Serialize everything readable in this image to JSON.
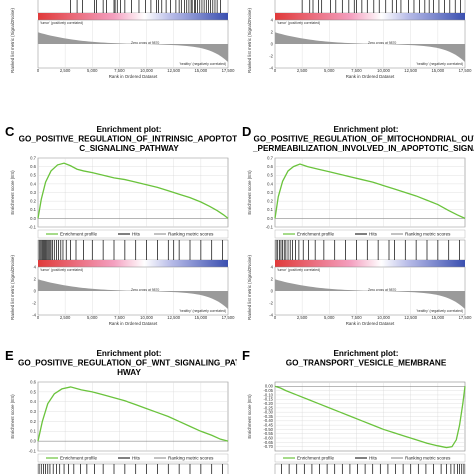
{
  "figure": {
    "panels": [
      {
        "id": "A",
        "letter": "",
        "title_lines": [],
        "partial": "bottom",
        "zero_cross": "Zero cross at 9870",
        "pos_label": "'tumor' (positively correlated)",
        "neg_label": "'healthy' (negatively correlated)"
      },
      {
        "id": "B",
        "letter": "",
        "title_lines": [],
        "partial": "bottom",
        "zero_cross": "Zero cross at 9870",
        "pos_label": "'tumor' (positively correlated)",
        "neg_label": "'healthy' (negatively correlated)"
      },
      {
        "id": "C",
        "letter": "C",
        "title_lines": [
          "Enrichment plot:",
          "GO_POSITIVE_REGULATION_OF_INTRINSIC_APOPTOTI",
          "C_SIGNALING_PATHWAY"
        ],
        "partial": "full",
        "zero_cross": "Zero cross at 9870",
        "pos_label": "'tumor' (positively correlated)",
        "neg_label": "'healthy' (negatively correlated)"
      },
      {
        "id": "D",
        "letter": "D",
        "title_lines": [
          "Enrichment plot:",
          "GO_POSITIVE_REGULATION_OF_MITOCHONDRIAL_OUT",
          "_PERMEABILIZATION_INVOLVED_IN_APOPTOTIC_SIGNA"
        ],
        "partial": "full",
        "zero_cross": "Zero cross at 9870",
        "pos_label": "'tumor' (positively correlated)",
        "neg_label": "'healthy' (negatively correlated)"
      },
      {
        "id": "E",
        "letter": "E",
        "title_lines": [
          "Enrichment plot:",
          "GO_POSITIVE_REGULATION_OF_WNT_SIGNALING_PAT",
          "HWAY"
        ],
        "partial": "top",
        "zero_cross": "",
        "pos_label": "",
        "neg_label": ""
      },
      {
        "id": "F",
        "letter": "F",
        "title_lines": [
          "Enrichment plot:",
          "GO_TRANSPORT_VESICLE_MEMBRANE"
        ],
        "partial": "top",
        "zero_cross": "",
        "pos_label": "",
        "neg_label": ""
      }
    ],
    "legend": {
      "profile": "Enrichment profile",
      "hits": "Hits",
      "metric": "Ranking metric scores"
    },
    "labels": {
      "es_axis": "Enrichment score (ES)",
      "metric_axis": "Ranked list metric (Signal2Noise)",
      "x_axis": "Rank in Ordered Dataset"
    }
  },
  "colors": {
    "profile": "#6ac33c",
    "hits": "#000000",
    "metric": "#9a9a9a",
    "pos": "#e03a3a",
    "neg": "#3a4fb0",
    "grid": "#d8d8d8"
  },
  "chart_data": [
    {
      "panel": "A",
      "type": "line",
      "x": [
        0,
        2500,
        5000,
        7500,
        10000,
        12500,
        15000,
        17500
      ],
      "xlim": [
        0,
        17500
      ],
      "metric_ylim": [
        -4,
        4
      ],
      "metric_yticks": [],
      "xticks": [
        "0",
        "2,500",
        "5,000",
        "7,500",
        "10,000",
        "12,500",
        "15,000",
        "17,500"
      ],
      "zero_cross": 9870,
      "hits": [
        3000,
        3600,
        4100,
        5200,
        5400,
        6000,
        6300,
        7000,
        7100,
        7300,
        7600,
        8000,
        8600,
        9300,
        9900,
        10400,
        10900,
        11100,
        11400,
        11800,
        12200,
        12700,
        13000,
        13200,
        13500,
        13700,
        13900,
        14100,
        14200,
        14400,
        14500,
        14700,
        14900,
        15100,
        15300,
        15500,
        15700,
        15900,
        16100,
        16300,
        16500,
        16800
      ]
    },
    {
      "panel": "B",
      "type": "line",
      "x": [
        0,
        2500,
        5000,
        7500,
        10000,
        12500,
        15000,
        17500
      ],
      "xlim": [
        0,
        17500
      ],
      "metric_ylim": [
        -4,
        4
      ],
      "metric_yticks": [
        "4",
        "2",
        "0",
        "-2",
        "-4"
      ],
      "xticks": [
        "0",
        "2,500",
        "5,000",
        "7,500",
        "10,000",
        "12,500",
        "15,000",
        "17,500"
      ],
      "zero_cross": 9870,
      "hits": [
        2500,
        3200,
        3500,
        4000,
        4300,
        5100,
        5600,
        6200,
        6800,
        7300,
        7500,
        8000,
        8500,
        9100,
        9600,
        10200,
        10800,
        11200,
        11600,
        12300,
        12800,
        13300,
        13800,
        14200,
        14600,
        15100,
        15600,
        16100,
        16600,
        17100
      ]
    },
    {
      "panel": "C",
      "type": "line",
      "xlim": [
        0,
        17500
      ],
      "ylim": [
        -0.1,
        0.7
      ],
      "yticks": [
        "0.7",
        "0.6",
        "0.5",
        "0.4",
        "0.3",
        "0.2",
        "0.1",
        "0.0",
        "-0.1"
      ],
      "metric_ylim": [
        -4,
        4
      ],
      "metric_yticks": [
        "4",
        "2",
        "0",
        "-2",
        "-4"
      ],
      "xticks": [
        "0",
        "2,500",
        "5,000",
        "7,500",
        "10,000",
        "12,500",
        "15,000",
        "17,500"
      ],
      "zero_cross": 9870,
      "es_x": [
        0,
        300,
        700,
        1200,
        1800,
        2400,
        3000,
        3600,
        4200,
        5000,
        6000,
        7000,
        8000,
        9000,
        10000,
        11000,
        12000,
        13000,
        14000,
        15000,
        15800,
        16500,
        17100,
        17500
      ],
      "es_y": [
        0.0,
        0.22,
        0.42,
        0.55,
        0.62,
        0.64,
        0.61,
        0.57,
        0.55,
        0.53,
        0.5,
        0.47,
        0.45,
        0.42,
        0.39,
        0.36,
        0.32,
        0.28,
        0.24,
        0.19,
        0.14,
        0.09,
        0.04,
        0.0
      ],
      "hits": [
        100,
        200,
        300,
        400,
        500,
        600,
        700,
        800,
        900,
        1000,
        1100,
        1200,
        1350,
        1500,
        1700,
        1900,
        2100,
        2300,
        2600,
        3000,
        3500,
        4200,
        5000,
        6000,
        7000,
        8000,
        9000,
        10000,
        11000,
        12000,
        12500,
        13000,
        14000,
        15000,
        16000,
        17000
      ]
    },
    {
      "panel": "D",
      "type": "line",
      "xlim": [
        0,
        17500
      ],
      "ylim": [
        -0.1,
        0.7
      ],
      "yticks": [
        "0.7",
        "0.6",
        "0.5",
        "0.4",
        "0.3",
        "0.2",
        "0.1",
        "0.0",
        "-0.1"
      ],
      "metric_ylim": [
        -4,
        4
      ],
      "metric_yticks": [
        "4",
        "2",
        "0",
        "-2",
        "-4"
      ],
      "xticks": [
        "0",
        "2,500",
        "5,000",
        "7,500",
        "10,000",
        "12,500",
        "15,000",
        "17,500"
      ],
      "zero_cross": 9870,
      "es_x": [
        0,
        300,
        700,
        1200,
        1700,
        2300,
        3000,
        4000,
        5000,
        6000,
        7000,
        8000,
        9000,
        10000,
        11000,
        12000,
        13000,
        14000,
        15000,
        16000,
        16800,
        17500
      ],
      "es_y": [
        0.0,
        0.25,
        0.43,
        0.55,
        0.6,
        0.63,
        0.6,
        0.57,
        0.54,
        0.51,
        0.48,
        0.45,
        0.42,
        0.38,
        0.34,
        0.3,
        0.26,
        0.21,
        0.16,
        0.09,
        0.04,
        0.0
      ],
      "hits": [
        100,
        250,
        400,
        550,
        700,
        850,
        1000,
        1200,
        1400,
        1600,
        1900,
        2200,
        2600,
        3100,
        3700,
        4500,
        5500,
        6500,
        7500,
        8500,
        9500,
        10500,
        11000,
        12000,
        13000,
        14000,
        15000,
        16000,
        17000
      ]
    },
    {
      "panel": "E",
      "type": "line",
      "xlim": [
        0,
        17500
      ],
      "ylim": [
        -0.1,
        0.6
      ],
      "yticks": [
        "0.6",
        "0.5",
        "0.4",
        "0.3",
        "0.2",
        "0.1",
        "0.0",
        "-0.1"
      ],
      "es_x": [
        0,
        400,
        900,
        1500,
        2200,
        3000,
        4000,
        5000,
        6000,
        7000,
        8000,
        9000,
        10000,
        11000,
        12000,
        13000,
        14000,
        15000,
        16000,
        16800,
        17500
      ],
      "es_y": [
        0.0,
        0.2,
        0.38,
        0.48,
        0.53,
        0.55,
        0.52,
        0.5,
        0.47,
        0.44,
        0.41,
        0.37,
        0.33,
        0.29,
        0.25,
        0.2,
        0.15,
        0.1,
        0.06,
        0.02,
        0.0
      ],
      "hits": [
        100,
        300,
        500,
        700,
        900,
        1100,
        1400,
        1700,
        2000,
        2400,
        2800,
        3300,
        3900,
        4500,
        5200,
        6000,
        7000,
        8000,
        9000,
        10000,
        11000,
        12000,
        13000,
        14000,
        15000,
        16000,
        17000
      ]
    },
    {
      "panel": "F",
      "type": "line",
      "xlim": [
        0,
        17500
      ],
      "ylim": [
        -0.75,
        0.05
      ],
      "yticks": [
        "0.00",
        "-0.05",
        "-0.10",
        "-0.15",
        "-0.20",
        "-0.25",
        "-0.30",
        "-0.35",
        "-0.40",
        "-0.45",
        "-0.50",
        "-0.55",
        "-0.60",
        "-0.65",
        "-0.70"
      ],
      "es_x": [
        0,
        500,
        1000,
        2000,
        3000,
        4000,
        5000,
        6000,
        7000,
        8000,
        9000,
        10000,
        11000,
        12000,
        13000,
        14000,
        15000,
        15800,
        16300,
        16700,
        17000,
        17300,
        17500
      ],
      "es_y": [
        0.0,
        -0.02,
        -0.05,
        -0.1,
        -0.15,
        -0.2,
        -0.25,
        -0.3,
        -0.35,
        -0.4,
        -0.45,
        -0.5,
        -0.54,
        -0.58,
        -0.62,
        -0.66,
        -0.69,
        -0.71,
        -0.7,
        -0.62,
        -0.45,
        -0.2,
        0.0
      ],
      "hits": [
        600,
        1300,
        2000,
        2700,
        3400,
        4100,
        4800,
        5500,
        6200,
        6900,
        7600,
        8300,
        9000,
        9700,
        10400,
        11100,
        11800,
        12500,
        13200,
        13900,
        14600,
        15300,
        15800,
        16200,
        16500,
        16800,
        17000,
        17200,
        17400
      ]
    }
  ]
}
